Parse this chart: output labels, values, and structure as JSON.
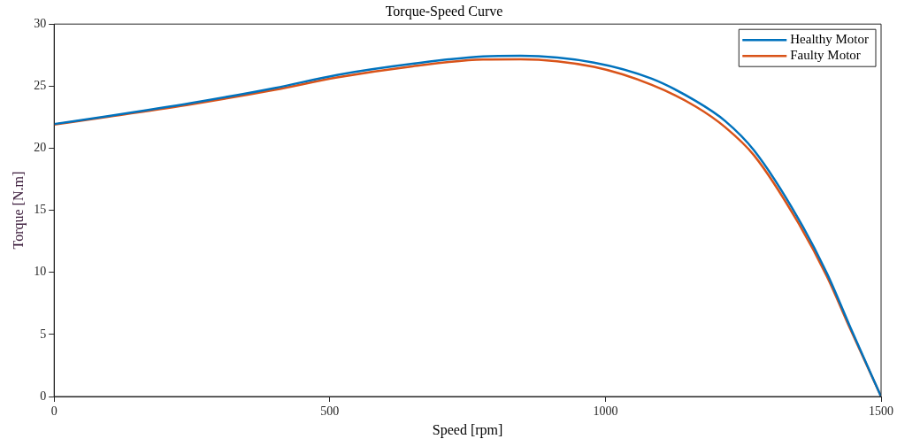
{
  "chart_data": {
    "type": "line",
    "title": "Torque-Speed Curve",
    "xlabel": "Speed [rpm]",
    "ylabel": "Torque [N.m]",
    "x": [
      0,
      100,
      250,
      400,
      513,
      650,
      778,
      846,
      979,
      1084,
      1164,
      1217,
      1270,
      1349,
      1402,
      1444,
      1500
    ],
    "series": [
      {
        "name": "Healthy Motor",
        "color": "#0072bd",
        "values": [
          21.95,
          22.6,
          23.65,
          24.85,
          25.9,
          26.8,
          27.4,
          27.45,
          26.9,
          25.6,
          23.8,
          22.2,
          19.8,
          14.4,
          9.9,
          5.6,
          0
        ]
      },
      {
        "name": "Faulty Motor",
        "color": "#d95319",
        "values": [
          21.9,
          22.55,
          23.55,
          24.7,
          25.7,
          26.6,
          27.15,
          27.17,
          26.55,
          25.1,
          23.35,
          21.7,
          19.4,
          14.05,
          9.65,
          5.45,
          0
        ]
      }
    ],
    "xlim": [
      0,
      1500
    ],
    "xticks": [
      0,
      500,
      1000,
      1500
    ],
    "ylim": [
      0,
      30
    ],
    "yticks": [
      0,
      5,
      10,
      15,
      20,
      25,
      30
    ],
    "grid": false,
    "legend": "top right",
    "marker": "none",
    "line_style": "solid"
  }
}
